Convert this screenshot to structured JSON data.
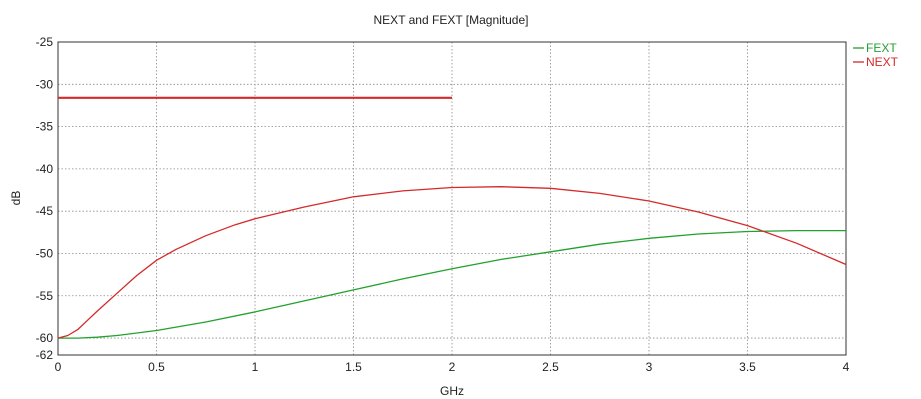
{
  "chart_data": {
    "type": "line",
    "title": "NEXT and FEXT [Magnitude]",
    "xlabel": "GHz",
    "ylabel": "dB",
    "xlim": [
      0,
      4
    ],
    "ylim": [
      -62,
      -25
    ],
    "x_ticks": [
      0,
      0.5,
      1,
      1.5,
      2,
      2.5,
      3,
      3.5,
      4
    ],
    "x_tick_labels": [
      "0",
      "0.5",
      "1",
      "1.5",
      "2",
      "2.5",
      "3",
      "3.5",
      "4"
    ],
    "y_ticks": [
      -25,
      -30,
      -35,
      -40,
      -45,
      -50,
      -55,
      -60,
      -62
    ],
    "y_tick_labels": [
      "-25",
      "-30",
      "-35",
      "-40",
      "-45",
      "-50",
      "-55",
      "-60",
      "-62"
    ],
    "grid": true,
    "legend_position": "top-right",
    "series": [
      {
        "name": "FEXT",
        "color": "#22a12e",
        "x": [
          0,
          0.1,
          0.2,
          0.3,
          0.5,
          0.75,
          1,
          1.25,
          1.5,
          1.75,
          2,
          2.25,
          2.5,
          2.75,
          3,
          3.25,
          3.5,
          3.75,
          4
        ],
        "y": [
          -60,
          -60,
          -59.9,
          -59.7,
          -59.1,
          -58.1,
          -56.9,
          -55.6,
          -54.3,
          -53,
          -51.8,
          -50.7,
          -49.8,
          -48.9,
          -48.2,
          -47.7,
          -47.4,
          -47.3,
          -47.3
        ]
      },
      {
        "name": "NEXT",
        "color": "#d42a2a",
        "x": [
          0,
          0.05,
          0.1,
          0.15,
          0.2,
          0.3,
          0.4,
          0.5,
          0.6,
          0.75,
          0.9,
          1,
          1.25,
          1.5,
          1.75,
          2,
          2.25,
          2.5,
          2.75,
          3,
          3.25,
          3.5,
          3.75,
          4
        ],
        "y": [
          -60,
          -59.7,
          -59,
          -57.9,
          -56.8,
          -54.7,
          -52.6,
          -50.8,
          -49.5,
          -47.9,
          -46.6,
          -45.9,
          -44.5,
          -43.3,
          -42.6,
          -42.2,
          -42.1,
          -42.3,
          -42.9,
          -43.8,
          -45.1,
          -46.7,
          -48.8,
          -51.3
        ]
      },
      {
        "name": "",
        "color": "#d42a2a",
        "x": [
          0,
          2
        ],
        "y": [
          -31.6,
          -31.6
        ]
      }
    ]
  }
}
